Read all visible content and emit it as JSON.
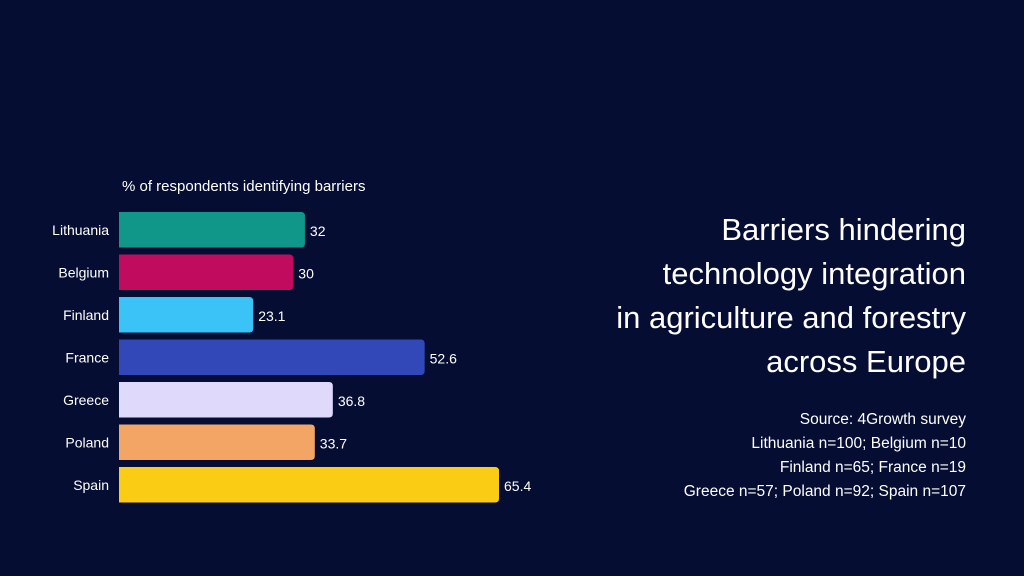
{
  "title_lines": [
    "Barriers hindering",
    "technology integration",
    "in agriculture and forestry",
    "across Europe"
  ],
  "source_lines": [
    "Source: 4Growth survey",
    "Lithuania n=100; Belgium n=10",
    "Finland n=65; France n=19",
    "Greece n=57; Poland n=92; Spain n=107"
  ],
  "chart_data": {
    "type": "bar",
    "orientation": "horizontal",
    "title": "% of respondents identifying barriers",
    "xlabel": "",
    "ylabel": "",
    "categories": [
      "Lithuania",
      "Belgium",
      "Finland",
      "France",
      "Greece",
      "Poland",
      "Spain"
    ],
    "values": [
      32,
      30,
      23.1,
      52.6,
      36.8,
      33.7,
      65.4
    ],
    "labels": [
      "32",
      "30",
      "23.1",
      "52.6",
      "36.8",
      "33.7",
      "65.4"
    ],
    "colors": [
      "#10978a",
      "#c10b5e",
      "#3bc3f8",
      "#3348b8",
      "#dfdafc",
      "#f2a565",
      "#facd14"
    ],
    "xlim": [
      0,
      65.4
    ],
    "grid": false,
    "legend": "none"
  }
}
